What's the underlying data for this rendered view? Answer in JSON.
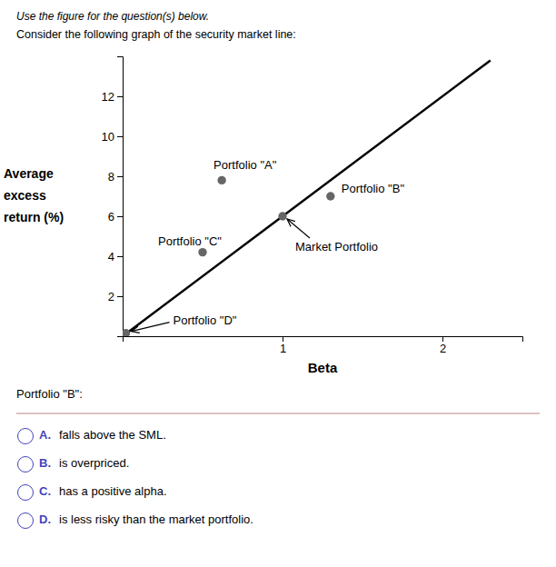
{
  "chart_data": {
    "type": "scatter",
    "title": "Use the figure for the question(s) below.",
    "subtitle": "Consider the following graph of the security market line:",
    "x_label": "Beta",
    "y_label": [
      "Average",
      "excess",
      "return (%)"
    ],
    "series": [
      {
        "type": "line",
        "color": "#000000",
        "x": [
          0,
          2.3
        ],
        "values": [
          0,
          13.8
        ]
      },
      {
        "type": "scatter",
        "color": "#666666",
        "x": [
          0.62,
          1.3,
          0.5,
          1.0,
          0.02
        ],
        "values": [
          7.8,
          7.0,
          4.2,
          6.0,
          0.15
        ],
        "labels": [
          "Portfolio \"A\"",
          "Portfolio \"B\"",
          "Portfolio \"C\"",
          "Market Portfolio",
          "Portfolio \"D\""
        ]
      }
    ],
    "xlim": [
      0,
      2.5
    ],
    "ylim": [
      0,
      14
    ],
    "xticks": [
      1,
      2
    ],
    "yticks": [
      2,
      4,
      6,
      8,
      10,
      12
    ],
    "question": "Portfolio \"B\":",
    "options": [
      {
        "letter": "A.",
        "text": "falls above the SML."
      },
      {
        "letter": "B.",
        "text": "is overpriced."
      },
      {
        "letter": "C.",
        "text": "has a positive alpha."
      },
      {
        "letter": "D.",
        "text": "is less risky than the market portfolio."
      }
    ],
    "option_color": "#4444bb",
    "separator_color": "#aa6666"
  }
}
